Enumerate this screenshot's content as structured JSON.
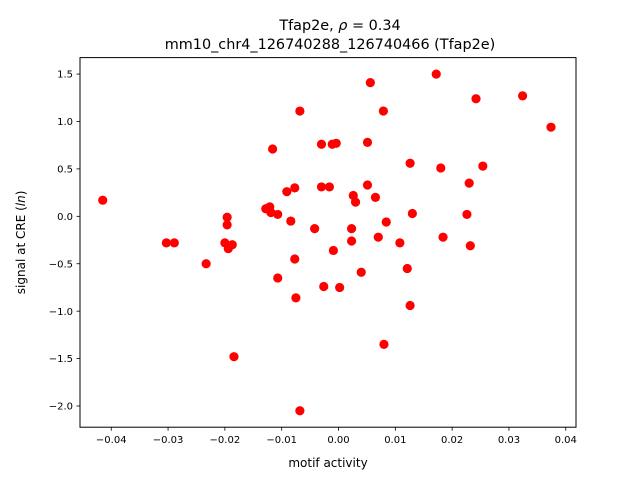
{
  "chart_data": {
    "type": "scatter",
    "title": "Tfap2e, ρ = 0.34",
    "title_prefix": "Tfap2e, ",
    "title_rho": "ρ",
    "title_suffix": " = 0.34",
    "subtitle": "mm10_chr4_126740288_126740466 (Tfap2e)",
    "xlabel": "motif activity",
    "ylabel": "signal at CRE (ln)",
    "ylabel_prefix": "signal at CRE (",
    "ylabel_math": "ln",
    "ylabel_suffix": ")",
    "xlim": [
      -0.0455,
      0.0418
    ],
    "ylim": [
      -2.2237,
      1.6737
    ],
    "xticks": [
      -0.04,
      -0.03,
      -0.02,
      -0.01,
      0.0,
      0.01,
      0.02,
      0.03,
      0.04
    ],
    "xtick_labels": [
      "−0.04",
      "−0.03",
      "−0.02",
      "−0.01",
      "0.00",
      "0.01",
      "0.02",
      "0.03",
      "0.04"
    ],
    "yticks": [
      -2.0,
      -1.5,
      -1.0,
      -0.5,
      0.0,
      0.5,
      1.0,
      1.5
    ],
    "ytick_labels": [
      "−2.0",
      "−1.5",
      "−1.0",
      "−0.5",
      "0.0",
      "0.5",
      "1.0",
      "1.5"
    ],
    "grid": false,
    "marker_color": "#ff0000",
    "points": [
      {
        "x": -0.0415,
        "y": 0.17
      },
      {
        "x": -0.0303,
        "y": -0.28
      },
      {
        "x": -0.0289,
        "y": -0.28
      },
      {
        "x": -0.0233,
        "y": -0.5
      },
      {
        "x": -0.02,
        "y": -0.28
      },
      {
        "x": -0.0196,
        "y": -0.01
      },
      {
        "x": -0.0196,
        "y": -0.09
      },
      {
        "x": -0.0194,
        "y": -0.34
      },
      {
        "x": -0.0187,
        "y": -0.3
      },
      {
        "x": -0.0184,
        "y": -1.48
      },
      {
        "x": -0.0128,
        "y": 0.08
      },
      {
        "x": -0.0121,
        "y": 0.1
      },
      {
        "x": -0.0119,
        "y": 0.04
      },
      {
        "x": -0.0116,
        "y": 0.71
      },
      {
        "x": -0.0107,
        "y": 0.02
      },
      {
        "x": -0.0107,
        "y": -0.65
      },
      {
        "x": -0.0091,
        "y": 0.26
      },
      {
        "x": -0.0084,
        "y": -0.05
      },
      {
        "x": -0.0077,
        "y": 0.3
      },
      {
        "x": -0.0077,
        "y": -0.45
      },
      {
        "x": -0.0075,
        "y": -0.86
      },
      {
        "x": -0.0068,
        "y": 1.11
      },
      {
        "x": -0.0068,
        "y": -2.05
      },
      {
        "x": -0.0042,
        "y": -0.13
      },
      {
        "x": -0.003,
        "y": 0.76
      },
      {
        "x": -0.003,
        "y": 0.31
      },
      {
        "x": -0.0026,
        "y": -0.74
      },
      {
        "x": -0.0016,
        "y": 0.31
      },
      {
        "x": -0.0011,
        "y": 0.76
      },
      {
        "x": -0.0009,
        "y": -0.36
      },
      {
        "x": -0.0004,
        "y": 0.77
      },
      {
        "x": 0.0002,
        "y": -0.75
      },
      {
        "x": 0.0023,
        "y": -0.13
      },
      {
        "x": 0.0023,
        "y": -0.26
      },
      {
        "x": 0.0026,
        "y": 0.22
      },
      {
        "x": 0.003,
        "y": 0.15
      },
      {
        "x": 0.004,
        "y": -0.59
      },
      {
        "x": 0.0051,
        "y": 0.78
      },
      {
        "x": 0.0051,
        "y": 0.33
      },
      {
        "x": 0.0056,
        "y": 1.41
      },
      {
        "x": 0.0065,
        "y": 0.2
      },
      {
        "x": 0.007,
        "y": -0.22
      },
      {
        "x": 0.0079,
        "y": 1.11
      },
      {
        "x": 0.008,
        "y": -1.35
      },
      {
        "x": 0.0084,
        "y": -0.06
      },
      {
        "x": 0.0108,
        "y": -0.28
      },
      {
        "x": 0.0121,
        "y": -0.55
      },
      {
        "x": 0.0126,
        "y": 0.56
      },
      {
        "x": 0.0126,
        "y": -0.94
      },
      {
        "x": 0.013,
        "y": 0.03
      },
      {
        "x": 0.0172,
        "y": 1.5
      },
      {
        "x": 0.018,
        "y": 0.51
      },
      {
        "x": 0.0184,
        "y": -0.22
      },
      {
        "x": 0.0226,
        "y": 0.02
      },
      {
        "x": 0.023,
        "y": 0.35
      },
      {
        "x": 0.0232,
        "y": -0.31
      },
      {
        "x": 0.0242,
        "y": 1.24
      },
      {
        "x": 0.0254,
        "y": 0.53
      },
      {
        "x": 0.0324,
        "y": 1.27
      },
      {
        "x": 0.0374,
        "y": 0.94
      }
    ]
  }
}
